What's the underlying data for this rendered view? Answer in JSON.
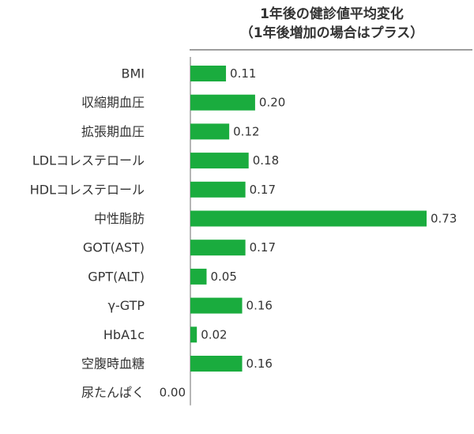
{
  "chart_data": {
    "type": "bar",
    "orientation": "horizontal",
    "title_lines": [
      "1年後の健診値平均変化",
      "（1年後増加の場合はプラス）"
    ],
    "categories": [
      "BMI",
      "収縮期血圧",
      "拡張期血圧",
      "LDLコレステロール",
      "HDLコレステロール",
      "中性脂肪",
      "GOT(AST)",
      "GPT(ALT)",
      "γ-GTP",
      "HbA1c",
      "空腹時血糖",
      "尿たんぱく"
    ],
    "values": [
      0.11,
      0.2,
      0.12,
      0.18,
      0.17,
      0.73,
      0.17,
      0.05,
      0.16,
      0.02,
      0.16,
      0.0
    ],
    "value_labels": [
      "0.11",
      "0.20",
      "0.12",
      "0.18",
      "0.17",
      "0.73",
      "0.17",
      "0.05",
      "0.16",
      "0.02",
      "0.16",
      "0.00"
    ],
    "xlim": [
      0,
      0.8
    ],
    "grid": false,
    "legend": "none",
    "bar_color": "#1aac3e",
    "axis_color": "#9e9e9e",
    "text_color": "#333333"
  }
}
